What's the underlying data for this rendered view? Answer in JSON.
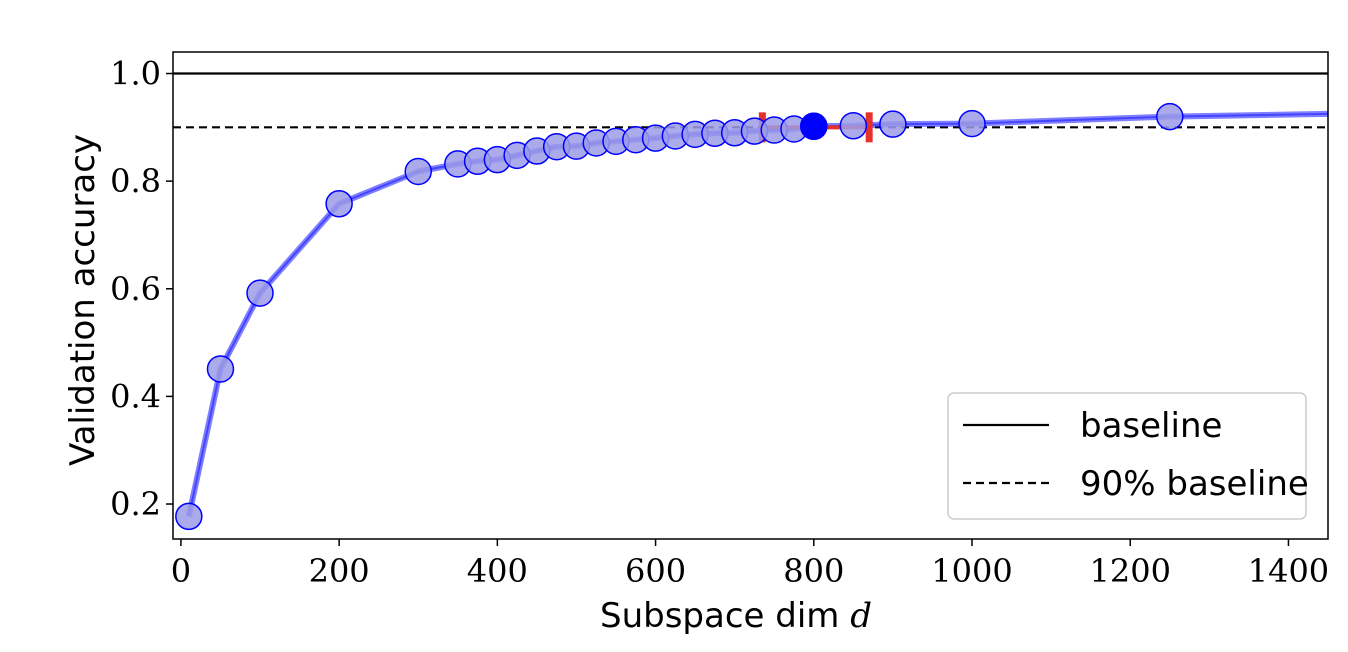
{
  "chart_data": {
    "type": "line",
    "xlabel": "Subspace dim",
    "xlabel_var": "d",
    "ylabel": "Validation accuracy",
    "xlim": [
      -10,
      1450
    ],
    "ylim": [
      0.135,
      1.04
    ],
    "x_ticks": [
      0,
      200,
      400,
      600,
      800,
      1000,
      1200,
      1400
    ],
    "y_ticks": [
      0.2,
      0.4,
      0.6,
      0.8,
      1.0
    ],
    "x_tick_labels": [
      "0",
      "200",
      "400",
      "600",
      "800",
      "1000",
      "1200",
      "1400"
    ],
    "y_tick_labels": [
      "0.2",
      "0.4",
      "0.6",
      "0.8",
      "1.0"
    ],
    "grid": false,
    "legend_position": "lower-right",
    "series": [
      {
        "style": "solid-line-with-circle-markers",
        "color": "#0000ff",
        "x": [
          10,
          50,
          100,
          200,
          300,
          350,
          375,
          400,
          425,
          450,
          475,
          500,
          525,
          550,
          575,
          600,
          625,
          650,
          675,
          700,
          725,
          750,
          775,
          800,
          850,
          900,
          1000,
          1250,
          1450
        ],
        "y": [
          0.177,
          0.451,
          0.592,
          0.758,
          0.818,
          0.832,
          0.837,
          0.84,
          0.848,
          0.856,
          0.864,
          0.865,
          0.871,
          0.874,
          0.877,
          0.88,
          0.884,
          0.887,
          0.889,
          0.89,
          0.893,
          0.895,
          0.897,
          0.902,
          0.903,
          0.906,
          0.907,
          0.92,
          0.925
        ]
      }
    ],
    "reference_lines": [
      {
        "name": "baseline",
        "y": 1.0,
        "style": "solid",
        "color": "#000000"
      },
      {
        "name": "90% baseline",
        "y": 0.9,
        "style": "dashed",
        "color": "#000000"
      }
    ],
    "highlight_point": {
      "x": 800,
      "y": 0.902,
      "color": "#0000ff"
    },
    "interval_markers": {
      "x": [
        735,
        870
      ],
      "y": 0.9,
      "color": "#e8302a"
    }
  }
}
